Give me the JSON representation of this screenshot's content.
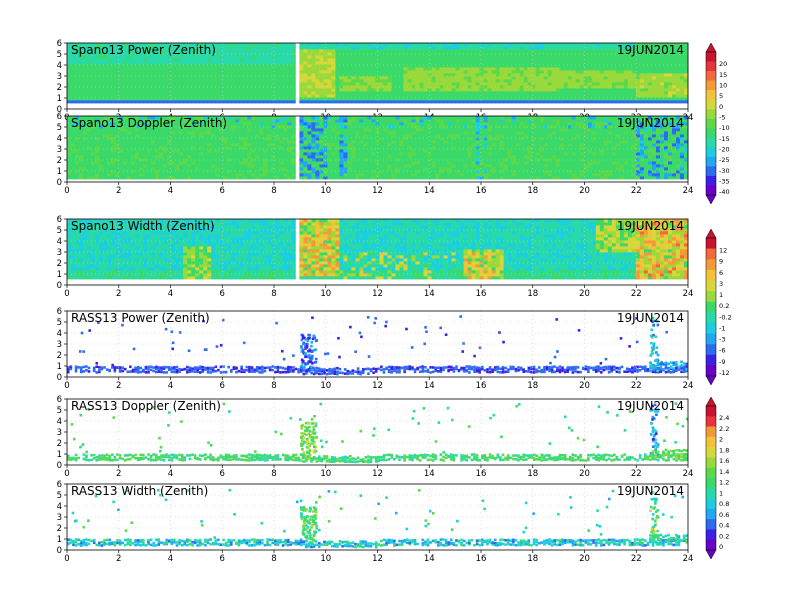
{
  "palettes": {
    "power_doppler": [
      "#6a00c8",
      "#3d1fe6",
      "#2d6bf0",
      "#22a8f0",
      "#1ccfe0",
      "#2ad9a8",
      "#3bd96a",
      "#5cd94a",
      "#9ad93c",
      "#d6d83a",
      "#f2c23a",
      "#f29a3a",
      "#f26a3a",
      "#e8343a",
      "#c8142e"
    ],
    "width": [
      "#6a00c8",
      "#3d1fe6",
      "#2d6bf0",
      "#22a8f0",
      "#1ccfe0",
      "#2ad9a8",
      "#3bd96a",
      "#9ad93c",
      "#d6d83a",
      "#f2c23a",
      "#f29a3a",
      "#f26a3a",
      "#c8142e"
    ],
    "rass": [
      "#6a00c8",
      "#3d1fe6",
      "#2d6bf0",
      "#22a8f0",
      "#1ccfe0",
      "#2ad9a8",
      "#3bd96a",
      "#5cd94a",
      "#9ad93c",
      "#d6d83a",
      "#f2c23a",
      "#f29a3a",
      "#e8343a",
      "#c8142e"
    ]
  },
  "chart_data": [
    {
      "type": "heatmap",
      "title": "Spano13 Power (Zenith)",
      "date": "19JUN2014",
      "x_ticks": [
        "0",
        "2",
        "4",
        "6",
        "8",
        "10",
        "12",
        "14",
        "16",
        "18",
        "20",
        "22",
        "24"
      ],
      "y_ticks": [
        "0",
        "1",
        "2",
        "3",
        "4",
        "5",
        "6"
      ],
      "xlim": [
        0,
        24
      ],
      "ylim": [
        0,
        6
      ],
      "variable": "power",
      "colorbar": "power_doppler",
      "sparse": false
    },
    {
      "type": "heatmap",
      "title": "Spano13 Doppler (Zenith)",
      "date": "19JUN2014",
      "x_ticks": [
        "0",
        "2",
        "4",
        "6",
        "8",
        "10",
        "12",
        "14",
        "16",
        "18",
        "20",
        "22",
        "24"
      ],
      "y_ticks": [
        "0",
        "1",
        "2",
        "3",
        "4",
        "5",
        "6"
      ],
      "xlim": [
        0,
        24
      ],
      "ylim": [
        0,
        6
      ],
      "variable": "doppler",
      "colorbar": "power_doppler",
      "sparse": false
    },
    {
      "type": "heatmap",
      "title": "Spano13 Width (Zenith)",
      "date": "19JUN2014",
      "x_ticks": [
        "0",
        "2",
        "4",
        "6",
        "8",
        "10",
        "12",
        "14",
        "16",
        "18",
        "20",
        "22",
        "24"
      ],
      "y_ticks": [
        "0",
        "1",
        "2",
        "3",
        "4",
        "5",
        "6"
      ],
      "xlim": [
        0,
        24
      ],
      "ylim": [
        0,
        6
      ],
      "variable": "width",
      "colorbar": "width",
      "sparse": false
    },
    {
      "type": "heatmap",
      "title": "RASS13 Power (Zenith)",
      "date": "19JUN2014",
      "x_ticks": [
        "0",
        "2",
        "4",
        "6",
        "8",
        "10",
        "12",
        "14",
        "16",
        "18",
        "20",
        "22",
        "24"
      ],
      "y_ticks": [
        "0",
        "1",
        "2",
        "3",
        "4",
        "5",
        "6"
      ],
      "xlim": [
        0,
        24
      ],
      "ylim": [
        0,
        6
      ],
      "variable": "rass_power",
      "colorbar": "width",
      "sparse": true
    },
    {
      "type": "heatmap",
      "title": "RASS13 Doppler (Zenith)",
      "date": "19JUN2014",
      "x_ticks": [
        "0",
        "2",
        "4",
        "6",
        "8",
        "10",
        "12",
        "14",
        "16",
        "18",
        "20",
        "22",
        "24"
      ],
      "y_ticks": [
        "0",
        "1",
        "2",
        "3",
        "4",
        "5",
        "6"
      ],
      "xlim": [
        0,
        24
      ],
      "ylim": [
        0,
        6
      ],
      "variable": "rass_doppler",
      "colorbar": "rass",
      "sparse": true
    },
    {
      "type": "heatmap",
      "title": "RASS13 Width (Zenith)",
      "date": "19JUN2014",
      "x_ticks": [
        "0",
        "2",
        "4",
        "6",
        "8",
        "10",
        "12",
        "14",
        "16",
        "18",
        "20",
        "22",
        "24"
      ],
      "y_ticks": [
        "0",
        "1",
        "2",
        "3",
        "4",
        "5",
        "6"
      ],
      "xlim": [
        0,
        24
      ],
      "ylim": [
        0,
        6
      ],
      "variable": "rass_width",
      "colorbar": "rass",
      "sparse": true
    }
  ],
  "colorbars": [
    {
      "id": "power_doppler",
      "labels": [
        "20",
        "15",
        "10",
        "5",
        "0",
        "-5",
        "-10",
        "-15",
        "-20",
        "-25",
        "-30",
        "-35",
        "-40"
      ]
    },
    {
      "id": "width",
      "labels": [
        "12",
        "9",
        "6",
        "3",
        "1",
        "0.2",
        "-0.2",
        "-1",
        "-3",
        "-6",
        "-9",
        "-12"
      ]
    },
    {
      "id": "rass",
      "labels": [
        "2.4",
        "2.2",
        "2",
        "1.8",
        "1.6",
        "1.4",
        "1.2",
        "1",
        "0.8",
        "0.6",
        "0.4",
        "0.2",
        "0"
      ]
    }
  ]
}
